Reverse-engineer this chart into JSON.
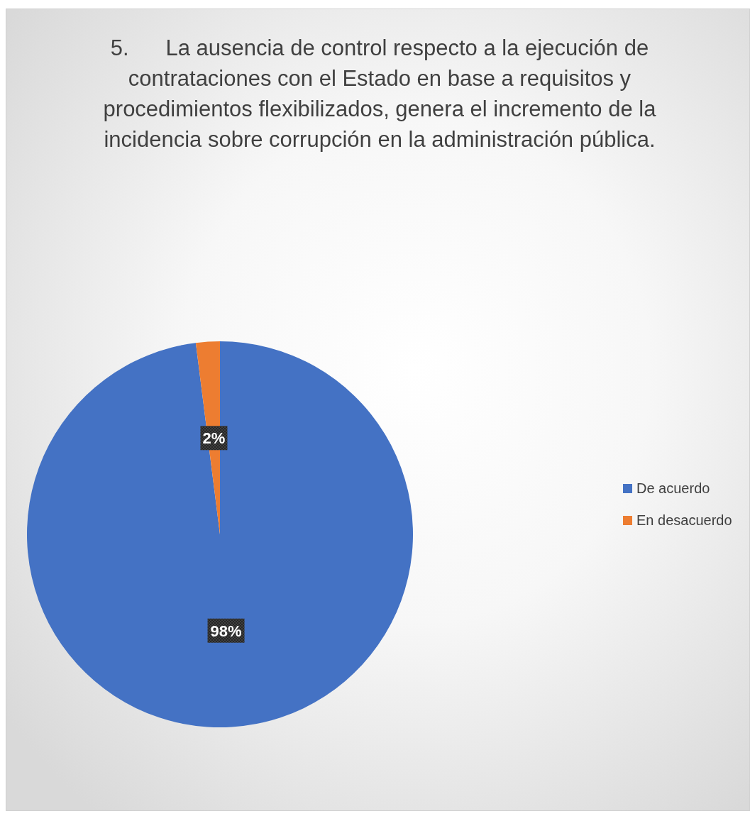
{
  "chart_data": {
    "type": "pie",
    "title": "5.      La ausencia de control respecto a la ejecución de contrataciones con el Estado en base a requisitos y procedimientos flexibilizados, genera el incremento de la incidencia sobre corrupción en la administración pública.",
    "categories": [
      "De acuerdo",
      "En desacuerdo"
    ],
    "values": [
      98,
      2
    ],
    "colors": [
      "#4472c4",
      "#ed7d31"
    ],
    "value_labels": [
      "98%",
      "2%"
    ],
    "legend": "right"
  }
}
